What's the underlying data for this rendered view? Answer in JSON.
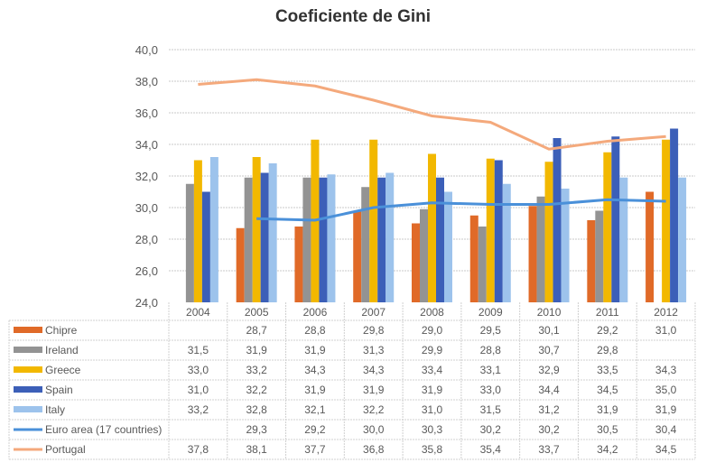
{
  "chart_data": {
    "type": "bar",
    "title": "Coeficiente de Gini",
    "categories": [
      "2004",
      "2005",
      "2006",
      "2007",
      "2008",
      "2009",
      "2010",
      "2011",
      "2012"
    ],
    "ylim": [
      24,
      40
    ],
    "yticks": [
      "24,0",
      "26,0",
      "28,0",
      "30,0",
      "32,0",
      "34,0",
      "36,0",
      "38,0",
      "40,0"
    ],
    "grid": true,
    "legend": "data-table",
    "series": [
      {
        "name": "Chipre",
        "kind": "bar",
        "color": "#e06a28",
        "values": [
          null,
          28.7,
          28.8,
          29.8,
          29.0,
          29.5,
          30.1,
          29.2,
          31.0
        ]
      },
      {
        "name": "Ireland",
        "kind": "bar",
        "color": "#939393",
        "values": [
          31.5,
          31.9,
          31.9,
          31.3,
          29.9,
          28.8,
          30.7,
          29.8,
          null
        ]
      },
      {
        "name": "Greece",
        "kind": "bar",
        "color": "#f2b800",
        "values": [
          33.0,
          33.2,
          34.3,
          34.3,
          33.4,
          33.1,
          32.9,
          33.5,
          34.3
        ]
      },
      {
        "name": "Spain",
        "kind": "bar",
        "color": "#3c5fb8",
        "values": [
          31.0,
          32.2,
          31.9,
          31.9,
          31.9,
          33.0,
          34.4,
          34.5,
          35.0
        ]
      },
      {
        "name": "Italy",
        "kind": "bar",
        "color": "#9dc3ec",
        "values": [
          33.2,
          32.8,
          32.1,
          32.2,
          31.0,
          31.5,
          31.2,
          31.9,
          31.9
        ]
      },
      {
        "name": "Euro area (17 countries)",
        "kind": "line",
        "color": "#4a90d9",
        "values": [
          null,
          29.3,
          29.2,
          30.0,
          30.3,
          30.2,
          30.2,
          30.5,
          30.4
        ]
      },
      {
        "name": "Portugal",
        "kind": "line",
        "color": "#f4a97c",
        "values": [
          37.8,
          38.1,
          37.7,
          36.8,
          35.8,
          35.4,
          33.7,
          34.2,
          34.5
        ]
      }
    ]
  }
}
